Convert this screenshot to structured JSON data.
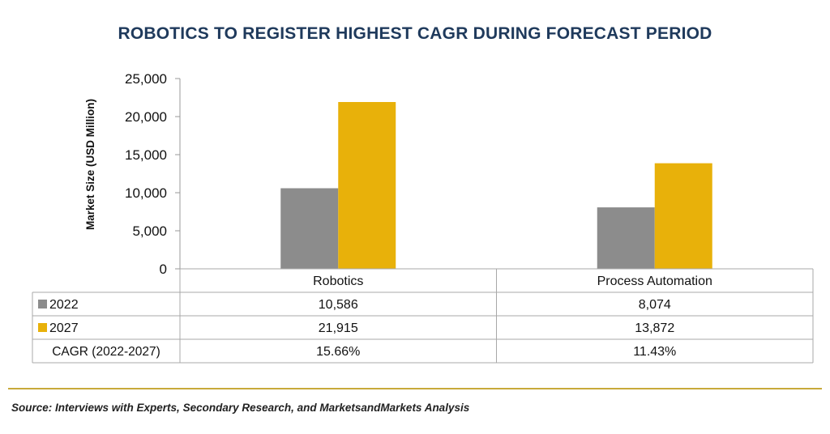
{
  "chart_data": {
    "type": "bar",
    "title": "ROBOTICS TO REGISTER HIGHEST CAGR DURING FORECAST PERIOD",
    "ylabel": "Market Size (USD Million)",
    "ylim": [
      0,
      25000
    ],
    "yticks": [
      0,
      5000,
      10000,
      15000,
      20000,
      25000
    ],
    "ytick_labels": [
      "0",
      "5,000",
      "10,000",
      "15,000",
      "20,000",
      "25,000"
    ],
    "categories": [
      "Robotics",
      "Process Automation"
    ],
    "series": [
      {
        "name": "2022",
        "values": [
          10586,
          8074
        ],
        "labels": [
          "10,586",
          "8,074"
        ],
        "color": "#8c8c8c"
      },
      {
        "name": "2027",
        "values": [
          21915,
          13872
        ],
        "labels": [
          "21,915",
          "13,872"
        ],
        "color": "#e8b10a"
      }
    ],
    "extra_rows": [
      {
        "name": "CAGR (2022-2027)",
        "labels": [
          "15.66%",
          "11.43%"
        ]
      }
    ],
    "grid": false,
    "legend": "data-table"
  },
  "source": "Source: Interviews with Experts, Secondary Research, and MarketsandMarkets Analysis",
  "colors": {
    "title": "#1f3a5c",
    "rule": "#c8a93a",
    "axis": "#999999"
  }
}
